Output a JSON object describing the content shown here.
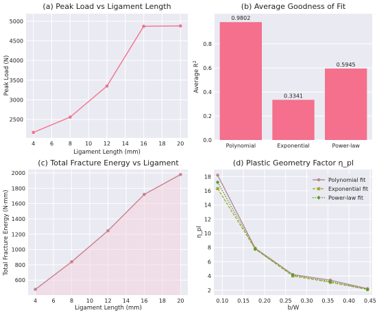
{
  "chart_data": [
    {
      "type": "line",
      "title": "(a) Peak Load vs Ligament Length",
      "xlabel": "Ligament Length (mm)",
      "ylabel": "Peak Load (N)",
      "xlim": [
        3.2,
        20.8
      ],
      "ylim": [
        2030,
        5190
      ],
      "xticks": [
        4,
        6,
        8,
        10,
        12,
        14,
        16,
        18,
        20
      ],
      "yticks": [
        2500,
        3000,
        3500,
        4000,
        4500,
        5000
      ],
      "grid": true,
      "color": "#f4708c",
      "series": [
        {
          "x": [
            4,
            8,
            12,
            16,
            20
          ],
          "y": [
            2170,
            2560,
            3350,
            4870,
            4880
          ]
        }
      ]
    },
    {
      "type": "bar",
      "title": "(b) Average Goodness of Fit",
      "xlabel": "",
      "ylabel": "Average R²",
      "ylabel_main": "Average R",
      "ylabel_sup": "2",
      "ylim": [
        0,
        1.05
      ],
      "yticks": [
        0.0,
        0.2,
        0.4,
        0.6,
        0.8
      ],
      "grid": true,
      "color": "#f4708c",
      "categories": [
        "Polynomial",
        "Exponential",
        "Power-law"
      ],
      "values": [
        0.9802,
        0.3341,
        0.5945
      ],
      "labels": [
        "0.9802",
        "0.3341",
        "0.5945"
      ]
    },
    {
      "type": "area",
      "title": "(c) Total Fracture Energy vs Ligament",
      "xlabel": "Ligament Length (mm)",
      "ylabel": "Total Fracture Energy (N·mm)",
      "xlim": [
        3.2,
        20.8
      ],
      "ylim": [
        405,
        2045
      ],
      "xticks": [
        4,
        6,
        8,
        10,
        12,
        14,
        16,
        18,
        20
      ],
      "yticks": [
        600,
        800,
        1000,
        1200,
        1400,
        1600,
        1800,
        2000
      ],
      "grid": true,
      "color": "#c97f8a",
      "fill": "#f6cfd9",
      "series": [
        {
          "x": [
            4,
            8,
            12,
            16,
            20
          ],
          "y": [
            480,
            840,
            1245,
            1720,
            1980
          ]
        }
      ]
    },
    {
      "type": "line",
      "title": "(d) Plastic Geometry Factor η_pl",
      "xlabel": "b/W",
      "ylabel": "η_pl",
      "xlim": [
        0.08,
        0.455
      ],
      "ylim": [
        1.3,
        19.0
      ],
      "xticks": [
        0.1,
        0.15,
        0.2,
        0.25,
        0.3,
        0.35,
        0.4,
        0.45
      ],
      "xtick_labels": [
        "0.10",
        "0.15",
        "0.20",
        "0.25",
        "0.30",
        "0.35",
        "0.40",
        "0.45"
      ],
      "yticks": [
        2,
        4,
        6,
        8,
        10,
        12,
        14,
        16,
        18
      ],
      "grid": true,
      "legend": "top-right",
      "x": [
        0.089,
        0.178,
        0.267,
        0.356,
        0.444
      ],
      "series": [
        {
          "name": "Polynomial fit",
          "values": [
            18.2,
            7.9,
            4.2,
            3.4,
            2.2
          ],
          "color": "#b58a95",
          "style": "solid",
          "marker": "circle"
        },
        {
          "name": "Exponential fit",
          "values": [
            16.3,
            7.8,
            4.0,
            3.1,
            2.1
          ],
          "color": "#a4ab34",
          "style": "dashed",
          "marker": "square"
        },
        {
          "name": "Power-law fit",
          "values": [
            17.2,
            7.8,
            4.1,
            3.2,
            2.1
          ],
          "color": "#5d9c2a",
          "style": "dotted",
          "marker": "diamond"
        }
      ]
    }
  ]
}
